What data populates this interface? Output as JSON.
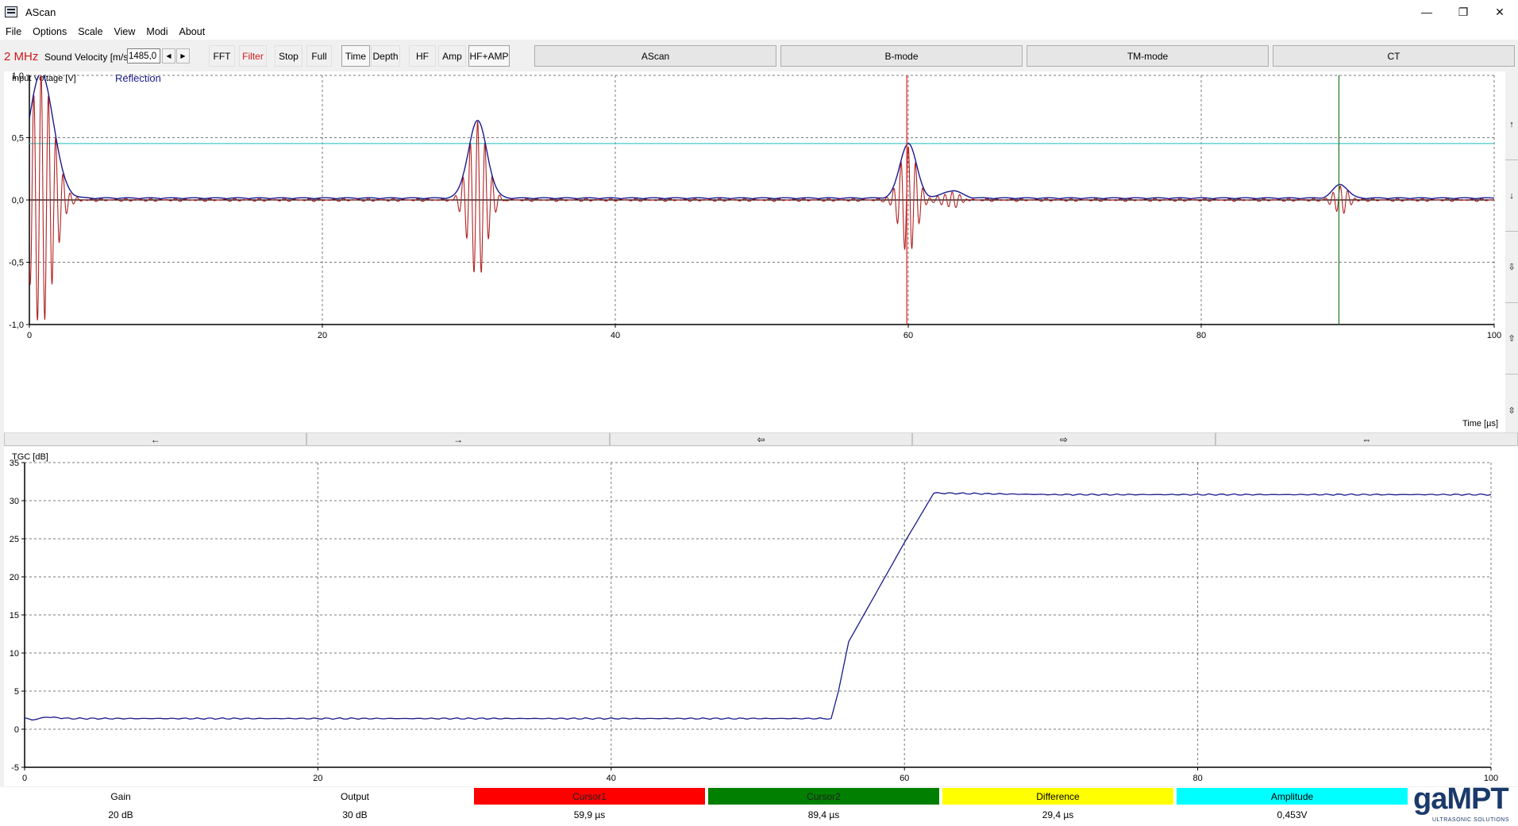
{
  "window": {
    "title": "AScan",
    "controls": {
      "minimize": "—",
      "restore": "❐",
      "close": "✕"
    }
  },
  "menu": [
    "File",
    "Options",
    "Scale",
    "View",
    "Modi",
    "About"
  ],
  "toolbar": {
    "frequency": "2 MHz",
    "sound_velocity_label": "Sound Velocity [m/s]",
    "sound_velocity_value": "1485,0",
    "buttons": [
      {
        "label": "FFT"
      },
      {
        "label": "Filter",
        "color": "#d01818"
      },
      {
        "label": "Stop"
      },
      {
        "label": "Full"
      },
      {
        "label": "Time",
        "pressed": true
      },
      {
        "label": "Depth"
      },
      {
        "label": "HF"
      },
      {
        "label": "Amp"
      },
      {
        "label": "HF+AMP",
        "pressed": true
      }
    ],
    "modes": [
      "AScan",
      "B-mode",
      "TM-mode",
      "CT"
    ]
  },
  "side_buttons": [
    "↑",
    "↓",
    "⇩",
    "⇧",
    "⇳"
  ],
  "nav_buttons": [
    "←",
    "→",
    "⇦",
    "⇨",
    "⇔"
  ],
  "chart_data": [
    {
      "type": "line",
      "ylabel": "Input Voltage [V]",
      "legend": "Reflection",
      "xlabel": "Time [µs]",
      "xlim": [
        0,
        100
      ],
      "ylim": [
        -1.0,
        1.0
      ],
      "x_ticks": [
        "0",
        "20",
        "40",
        "60",
        "80",
        "100"
      ],
      "y_ticks": [
        "1,0",
        "0,5",
        "0,0",
        "-0,5",
        "-1,0"
      ],
      "grid": true,
      "colors": {
        "hf": "#b22222",
        "envelope": "#1a1a8c",
        "threshold": "#48c8c8",
        "cursor1": "#e03030",
        "cursor2": "#2e7d32"
      },
      "threshold": 0.453,
      "cursor1": 59.9,
      "cursor2": 89.4,
      "echoes": [
        {
          "t": 0.8,
          "amp": 1.0,
          "width": 1.2,
          "freq": 2.0
        },
        {
          "t": 30.6,
          "amp": 0.62,
          "width": 0.9,
          "freq": 2.0
        },
        {
          "t": 60.0,
          "amp": 0.44,
          "width": 0.8,
          "freq": 2.0
        },
        {
          "t": 63.0,
          "amp": 0.06,
          "width": 0.9,
          "freq": 2.0
        },
        {
          "t": 89.5,
          "amp": 0.11,
          "width": 0.7,
          "freq": 2.0
        }
      ]
    },
    {
      "type": "line",
      "ylabel": "TGC [dB]",
      "xlim": [
        0,
        100
      ],
      "ylim": [
        -5,
        35
      ],
      "x_ticks": [
        "0",
        "20",
        "40",
        "60",
        "80",
        "100"
      ],
      "y_ticks": [
        "35",
        "30",
        "25",
        "20",
        "15",
        "10",
        "5",
        "0",
        "-5"
      ],
      "grid": true,
      "color": "#1a1a8c",
      "x": [
        0,
        0.5,
        1.5,
        3,
        20,
        55,
        55.5,
        56.2,
        60,
        62,
        70,
        100
      ],
      "y": [
        1.5,
        1.2,
        1.6,
        1.4,
        1.4,
        1.4,
        5.0,
        11.5,
        24.5,
        31.0,
        30.8,
        30.8
      ]
    }
  ],
  "status": [
    {
      "label": "Gain",
      "value": "20 dB",
      "color": "#ffffff"
    },
    {
      "label": "Output",
      "value": "30 dB",
      "color": "#ffffff"
    },
    {
      "label": "Cursor1",
      "value": "59,9 µs",
      "color": "#ff0000"
    },
    {
      "label": "Cursor2",
      "value": "89,4 µs",
      "color": "#007f00"
    },
    {
      "label": "Difference",
      "value": "29,4 µs",
      "color": "#ffff00"
    },
    {
      "label": "Amplitude",
      "value": "0,453V",
      "color": "#00ffff"
    }
  ],
  "logo": {
    "text": "gaMPT",
    "subtext": "ULTRASONIC SOLUTIONS"
  }
}
